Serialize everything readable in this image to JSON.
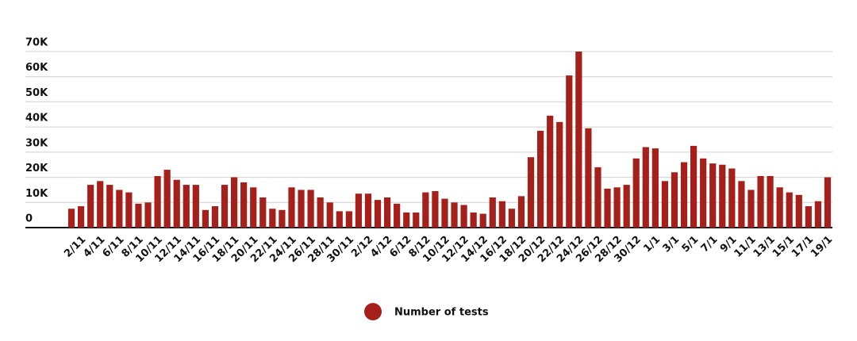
{
  "chart_data": {
    "type": "bar",
    "categories": [
      null,
      "2/11",
      null,
      "4/11",
      null,
      "6/11",
      null,
      "8/11",
      null,
      "10/11",
      null,
      "12/11",
      null,
      "14/11",
      null,
      "16/11",
      null,
      "18/11",
      null,
      "20/11",
      null,
      "22/11",
      null,
      "24/11",
      null,
      "26/11",
      null,
      "28/11",
      null,
      "30/11",
      null,
      "2/12",
      null,
      "4/12",
      null,
      "6/12",
      null,
      "8/12",
      null,
      "10/12",
      null,
      "12/12",
      null,
      "14/12",
      null,
      "16/12",
      null,
      "18/12",
      null,
      "20/12",
      null,
      "22/12",
      null,
      "24/12",
      null,
      "26/12",
      null,
      "28/12",
      null,
      "30/12",
      null,
      "1/1",
      null,
      "3/1",
      null,
      "5/1",
      null,
      "7/1",
      null,
      "9/1",
      null,
      "11/1",
      null,
      "13/1",
      null,
      "15/1",
      null,
      "17/1",
      null,
      "19/1"
    ],
    "series": [
      {
        "name": "Number of tests",
        "color": "#a5201b",
        "values": [
          7500,
          8500,
          17000,
          18500,
          17000,
          15000,
          14000,
          9500,
          10000,
          20500,
          23000,
          19000,
          17000,
          17000,
          7000,
          8500,
          17000,
          20000,
          18000,
          16000,
          12000,
          7500,
          7000,
          16000,
          15000,
          15000,
          12000,
          10000,
          6500,
          6500,
          13500,
          13500,
          11000,
          12000,
          9500,
          6000,
          6000,
          14000,
          14500,
          11500,
          10000,
          9000,
          6000,
          5500,
          12000,
          10500,
          7500,
          12500,
          28000,
          38500,
          44500,
          42000,
          60500,
          70000,
          39500,
          24000,
          15500,
          16000,
          17000,
          27500,
          32000,
          31500,
          18500,
          22000,
          26000,
          32500,
          27500,
          25500,
          25000,
          23500,
          18500,
          15000,
          20500,
          20500,
          16000,
          14000,
          13000,
          8500,
          10500,
          20000
        ]
      }
    ],
    "ylim": [
      0,
      70000
    ],
    "yticks": [
      0,
      {
        "value": 10000,
        "label": "10K"
      },
      {
        "value": 20000,
        "label": "20K"
      },
      {
        "value": 30000,
        "label": "30K"
      },
      {
        "value": 40000,
        "label": "40K"
      },
      {
        "value": 50000,
        "label": "50K"
      },
      {
        "value": 60000,
        "label": "60K"
      },
      {
        "value": 70000,
        "label": "70K"
      }
    ],
    "grid": true,
    "legend": "bottom"
  }
}
